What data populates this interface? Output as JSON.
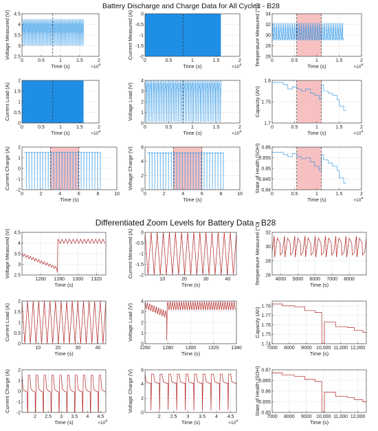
{
  "section_titles": [
    "Battery Discharge and Charge Data for All Cycles - B28",
    "Differentiated Zoom Levels for Battery Data  - B28"
  ],
  "colors": {
    "series_top": "#1f8fe6",
    "series_bottom": "#b22222",
    "highlight": "#f4a6a6",
    "cursor": "#333333",
    "grid": "#e6e6e6",
    "axis": "#444444"
  },
  "chart_data": [
    {
      "type": "line",
      "pattern": "voltage_sawtooth",
      "xlabel": "Time (s)",
      "ylabel": "Voltage Measured (V)",
      "xlim": [
        0,
        2
      ],
      "ylim": [
        2.5,
        4.5
      ],
      "xticks": [
        "0",
        "0.5",
        "1",
        "1.5",
        "2"
      ],
      "yticks": [
        "2.5",
        "3",
        "3.5",
        "4",
        "4.5"
      ],
      "x_exponent": "4",
      "x_data_end": 1.6,
      "cursor_x": 0.8
    },
    {
      "type": "area",
      "pattern": "dense_square",
      "xlabel": "Time (s)",
      "ylabel": "Current Measured (A)",
      "xlim": [
        0,
        2
      ],
      "ylim": [
        -2,
        0
      ],
      "xticks": [
        "0",
        "0.5",
        "1",
        "1.5",
        "2"
      ],
      "yticks": [
        "-2",
        "-1.5",
        "-1",
        "-0.5",
        "0"
      ],
      "x_exponent": "4",
      "x_data_end": 1.6,
      "y_fill_range": [
        -2,
        0
      ],
      "cursor_x": 0.8
    },
    {
      "type": "line",
      "pattern": "temperature_spikes",
      "xlabel": "Time (s)",
      "ylabel": "Temperature Measured (°C)",
      "xlim": [
        0,
        2
      ],
      "ylim": [
        26,
        34
      ],
      "xticks": [
        "0",
        "0.5",
        "1",
        "1.5",
        "2"
      ],
      "yticks": [
        "26",
        "28",
        "30",
        "32",
        "34"
      ],
      "x_exponent": "4",
      "x_data_end": 1.6,
      "highlight": [
        0.55,
        1.1
      ],
      "cursor_x": [
        0.55,
        1.1
      ]
    },
    {
      "type": "area",
      "pattern": "dense_square",
      "xlabel": "Time (s)",
      "ylabel": "Current Load (A)",
      "xlim": [
        0,
        2
      ],
      "ylim": [
        0,
        2
      ],
      "xticks": [
        "0",
        "0.5",
        "1",
        "1.5",
        "2"
      ],
      "yticks": [
        "0",
        "0.5",
        "1",
        "1.5",
        "2"
      ],
      "x_exponent": "4",
      "x_data_end": 1.6,
      "y_fill_range": [
        0,
        2
      ],
      "cursor_x": 0.8
    },
    {
      "type": "line",
      "pattern": "voltage_load",
      "xlabel": "Time (s)",
      "ylabel": "Voltage Load (V)",
      "xlim": [
        0,
        2
      ],
      "ylim": [
        0,
        4
      ],
      "xticks": [
        "0",
        "0.5",
        "1",
        "1.5",
        "2"
      ],
      "yticks": [
        "0",
        "1",
        "2",
        "3",
        "4"
      ],
      "x_exponent": "4",
      "x_data_end": 1.6,
      "cursor_x": 0.8
    },
    {
      "type": "line",
      "pattern": "steps",
      "xlabel": "Time (s)",
      "ylabel": "Capacity (Ah)",
      "xlim": [
        0,
        2
      ],
      "ylim": [
        1.7,
        1.8
      ],
      "xticks": [
        "0",
        "0.5",
        "1",
        "1.5",
        "2"
      ],
      "yticks": [
        "1.7",
        "1.75",
        "1.8"
      ],
      "x_exponent": "4",
      "highlight": [
        0.55,
        1.1
      ],
      "cursor_x": [
        0.55,
        1.1
      ],
      "steps": [
        [
          0,
          1.795
        ],
        [
          0.25,
          1.79
        ],
        [
          0.35,
          1.78
        ],
        [
          0.45,
          1.785
        ],
        [
          0.55,
          1.78
        ],
        [
          0.65,
          1.775
        ],
        [
          0.75,
          1.78
        ],
        [
          0.85,
          1.77
        ],
        [
          0.95,
          1.765
        ],
        [
          1.05,
          1.755
        ],
        [
          1.1,
          1.79
        ],
        [
          1.15,
          1.775
        ],
        [
          1.25,
          1.77
        ],
        [
          1.35,
          1.765
        ],
        [
          1.45,
          1.755
        ],
        [
          1.5,
          1.74
        ],
        [
          1.6,
          1.73
        ]
      ],
      "x_data_end": 1.65
    },
    {
      "type": "line",
      "pattern": "charge_pulses",
      "xlabel": "Time (s)",
      "ylabel": "Current Charge (A)",
      "xlim": [
        0,
        10
      ],
      "ylim": [
        -2,
        2
      ],
      "xticks": [
        "0",
        "2",
        "4",
        "6",
        "8",
        "10"
      ],
      "yticks": [
        "-2",
        "-1",
        "0",
        "1",
        "2"
      ],
      "x_data_end": 8.3,
      "highlight": [
        3,
        6
      ],
      "cursor_x": [
        3,
        6
      ]
    },
    {
      "type": "line",
      "pattern": "charge_pulses_v",
      "xlabel": "Time (s)",
      "ylabel": "Voltage Charge (V)",
      "xlim": [
        0,
        10
      ],
      "ylim": [
        0,
        6
      ],
      "xticks": [
        "0",
        "2",
        "4",
        "6",
        "8",
        "10"
      ],
      "yticks": [
        "0",
        "2",
        "4",
        "6"
      ],
      "x_data_end": 8.3,
      "highlight": [
        3,
        6
      ],
      "cursor_x": [
        3,
        6
      ]
    },
    {
      "type": "line",
      "pattern": "steps",
      "xlabel": "Time (s)",
      "ylabel": "State of Health (SOH)",
      "xlim": [
        0,
        2
      ],
      "ylim": [
        0.84,
        0.86
      ],
      "xticks": [
        "0",
        "0.5",
        "1",
        "1.5",
        "2"
      ],
      "yticks": [
        "0.84",
        "0.845",
        "0.85",
        "0.855",
        "0.86"
      ],
      "x_exponent": "4",
      "highlight": [
        0.55,
        1.1
      ],
      "cursor_x": [
        0.55,
        1.1
      ],
      "steps": [
        [
          0,
          0.8575
        ],
        [
          0.25,
          0.8565
        ],
        [
          0.35,
          0.8555
        ],
        [
          0.45,
          0.857
        ],
        [
          0.55,
          0.8555
        ],
        [
          0.65,
          0.8545
        ],
        [
          0.75,
          0.855
        ],
        [
          0.85,
          0.853
        ],
        [
          0.95,
          0.851
        ],
        [
          1.05,
          0.849
        ],
        [
          1.1,
          0.8565
        ],
        [
          1.15,
          0.854
        ],
        [
          1.25,
          0.8525
        ],
        [
          1.35,
          0.851
        ],
        [
          1.45,
          0.849
        ],
        [
          1.5,
          0.8455
        ],
        [
          1.6,
          0.843
        ]
      ],
      "x_data_end": 1.65
    },
    {
      "type": "line",
      "pattern": "zoom_voltage",
      "xlabel": "Time (s)",
      "ylabel": "Voltage Measured (V)",
      "xlim": [
        1240,
        1330
      ],
      "ylim": [
        2.5,
        4.5
      ],
      "xticks": [
        "1260",
        "1280",
        "1300",
        "1320"
      ],
      "yticks": [
        "2.5",
        "3",
        "3.5",
        "4",
        "4.5"
      ],
      "drop_at": 1278
    },
    {
      "type": "line",
      "pattern": "zoom_triangle",
      "xlabel": "Time (s)",
      "ylabel": "Current Measured (A)",
      "xlim": [
        2,
        44
      ],
      "ylim": [
        -2,
        0
      ],
      "xticks": [
        "10",
        "20",
        "30",
        "40"
      ],
      "yticks": [
        "-2",
        "-1.5",
        "-1",
        "-0.5",
        "0"
      ]
    },
    {
      "type": "line",
      "pattern": "zoom_temperature",
      "xlabel": "Time (s)",
      "ylabel": "Temperature Measured (°C)",
      "xlim": [
        3500,
        9000
      ],
      "ylim": [
        26,
        32
      ],
      "xticks": [
        "4000",
        "5000",
        "6000",
        "7000",
        "8000"
      ],
      "yticks": [
        "26",
        "28",
        "30",
        "32"
      ]
    },
    {
      "type": "line",
      "pattern": "zoom_triangle",
      "xlabel": "Time (s)",
      "ylabel": "Current Load (A)",
      "xlim": [
        2,
        44
      ],
      "ylim": [
        0,
        2
      ],
      "xticks": [
        "10",
        "20",
        "30",
        "40"
      ],
      "yticks": [
        "0",
        "0.5",
        "1",
        "1.5",
        "2"
      ]
    },
    {
      "type": "line",
      "pattern": "zoom_voltage_load",
      "xlabel": "Time (s)",
      "ylabel": "Voltage Load (V)",
      "xlim": [
        1260,
        1340
      ],
      "ylim": [
        0,
        4
      ],
      "xticks": [
        "1260",
        "1280",
        "1300",
        "1320",
        "1340"
      ],
      "yticks": [
        "0",
        "1",
        "2",
        "3",
        "4"
      ],
      "drop_at": 1279
    },
    {
      "type": "line",
      "pattern": "steps",
      "xlabel": "Time (s)",
      "ylabel": "Capacity (Ah)",
      "xlim": [
        7000,
        12500
      ],
      "ylim": [
        1.74,
        1.785
      ],
      "xticks": [
        "7000",
        "8000",
        "9000",
        "10,000",
        "11,000",
        "12,000"
      ],
      "yticks": [
        "1.74",
        "1.75",
        "1.76",
        "1.77",
        "1.78"
      ],
      "steps": [
        [
          7000,
          1.782
        ],
        [
          7600,
          1.78
        ],
        [
          8300,
          1.779
        ],
        [
          8900,
          1.775
        ],
        [
          9500,
          1.773
        ],
        [
          9900,
          1.74
        ],
        [
          10050,
          1.763
        ],
        [
          10700,
          1.758
        ],
        [
          11400,
          1.757
        ],
        [
          11800,
          1.754
        ],
        [
          12300,
          1.752
        ]
      ],
      "x_data_end": 12500
    },
    {
      "type": "line",
      "pattern": "zoom_charge_current",
      "xlabel": "Time (s)",
      "ylabel": "Current Charge (A)",
      "xlim": [
        1.5,
        4.7
      ],
      "ylim": [
        -2,
        2
      ],
      "xticks": [
        "2",
        "2.5",
        "3",
        "3.5",
        "4",
        "4.5"
      ],
      "yticks": [
        "-2",
        "-1",
        "0",
        "1",
        "2"
      ],
      "x_exponent": "4"
    },
    {
      "type": "line",
      "pattern": "zoom_charge_voltage",
      "xlabel": "Time (s)",
      "ylabel": "Voltage Charge (V)",
      "xlim": [
        1.5,
        4.7
      ],
      "ylim": [
        0,
        6
      ],
      "xticks": [
        "2",
        "2.5",
        "3",
        "3.5",
        "4",
        "4.5"
      ],
      "yticks": [
        "0",
        "2",
        "4",
        "6"
      ],
      "x_exponent": "4"
    },
    {
      "type": "line",
      "pattern": "steps",
      "xlabel": "Time (s)",
      "ylabel": "State of Health (SOH)",
      "xlim": [
        7000,
        12500
      ],
      "ylim": [
        0.85,
        0.87
      ],
      "xticks": [
        "7000",
        "8000",
        "9000",
        "10,000",
        "11,000",
        "12,000"
      ],
      "yticks": [
        "0.85",
        "0.855",
        "0.86",
        "0.865",
        "0.87"
      ],
      "steps": [
        [
          7000,
          0.8685
        ],
        [
          7600,
          0.8675
        ],
        [
          8300,
          0.867
        ],
        [
          8900,
          0.8655
        ],
        [
          9500,
          0.8645
        ],
        [
          9900,
          0.85
        ],
        [
          10050,
          0.8595
        ],
        [
          10700,
          0.8575
        ],
        [
          11400,
          0.857
        ],
        [
          11800,
          0.856
        ],
        [
          12300,
          0.855
        ]
      ],
      "x_data_end": 12500
    }
  ]
}
